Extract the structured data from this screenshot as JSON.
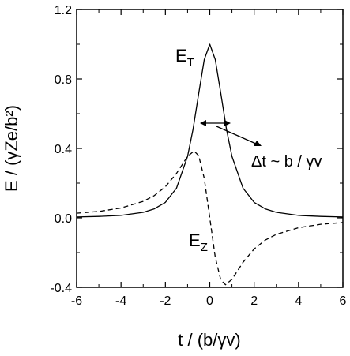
{
  "chart_data": {
    "type": "line",
    "title": "",
    "xlabel": "t / (b/γv)",
    "ylabel": "E / (γZe/b²)",
    "xlim": [
      -6,
      6
    ],
    "ylim": [
      -0.4,
      1.2
    ],
    "x_ticks": [
      "-6",
      "-4",
      "-2",
      "0",
      "2",
      "4",
      "6"
    ],
    "y_ticks": [
      "-0.4",
      "0.0",
      "0.4",
      "0.8",
      "1.2"
    ],
    "grid": false,
    "series": [
      {
        "name": "E_T",
        "style": "solid",
        "color": "#000000",
        "x": [
          -6,
          -5,
          -4,
          -3,
          -2.5,
          -2,
          -1.5,
          -1,
          -0.75,
          -0.5,
          -0.25,
          0,
          0.25,
          0.5,
          0.75,
          1,
          1.5,
          2,
          2.5,
          3,
          4,
          5,
          6
        ],
        "y": [
          0.005,
          0.008,
          0.014,
          0.032,
          0.052,
          0.089,
          0.171,
          0.354,
          0.512,
          0.716,
          0.911,
          1.0,
          0.911,
          0.716,
          0.512,
          0.354,
          0.171,
          0.089,
          0.052,
          0.032,
          0.014,
          0.008,
          0.005
        ]
      },
      {
        "name": "E_Z",
        "style": "dashed",
        "color": "#000000",
        "x": [
          -6,
          -5,
          -4,
          -3,
          -2.5,
          -2,
          -1.5,
          -1,
          -0.71,
          -0.5,
          -0.25,
          0,
          0.25,
          0.5,
          0.71,
          1,
          1.5,
          2,
          2.5,
          3,
          4,
          5,
          6
        ],
        "y": [
          0.027,
          0.037,
          0.057,
          0.095,
          0.128,
          0.179,
          0.256,
          0.354,
          0.385,
          0.358,
          0.228,
          0.0,
          -0.228,
          -0.358,
          -0.385,
          -0.354,
          -0.256,
          -0.179,
          -0.128,
          -0.095,
          -0.057,
          -0.037,
          -0.027
        ]
      }
    ],
    "annotations": {
      "et_label": "E",
      "et_sub": "T",
      "ez_label": "E",
      "ez_sub": "Z",
      "width_label": "Δt ~ b / γv"
    }
  }
}
